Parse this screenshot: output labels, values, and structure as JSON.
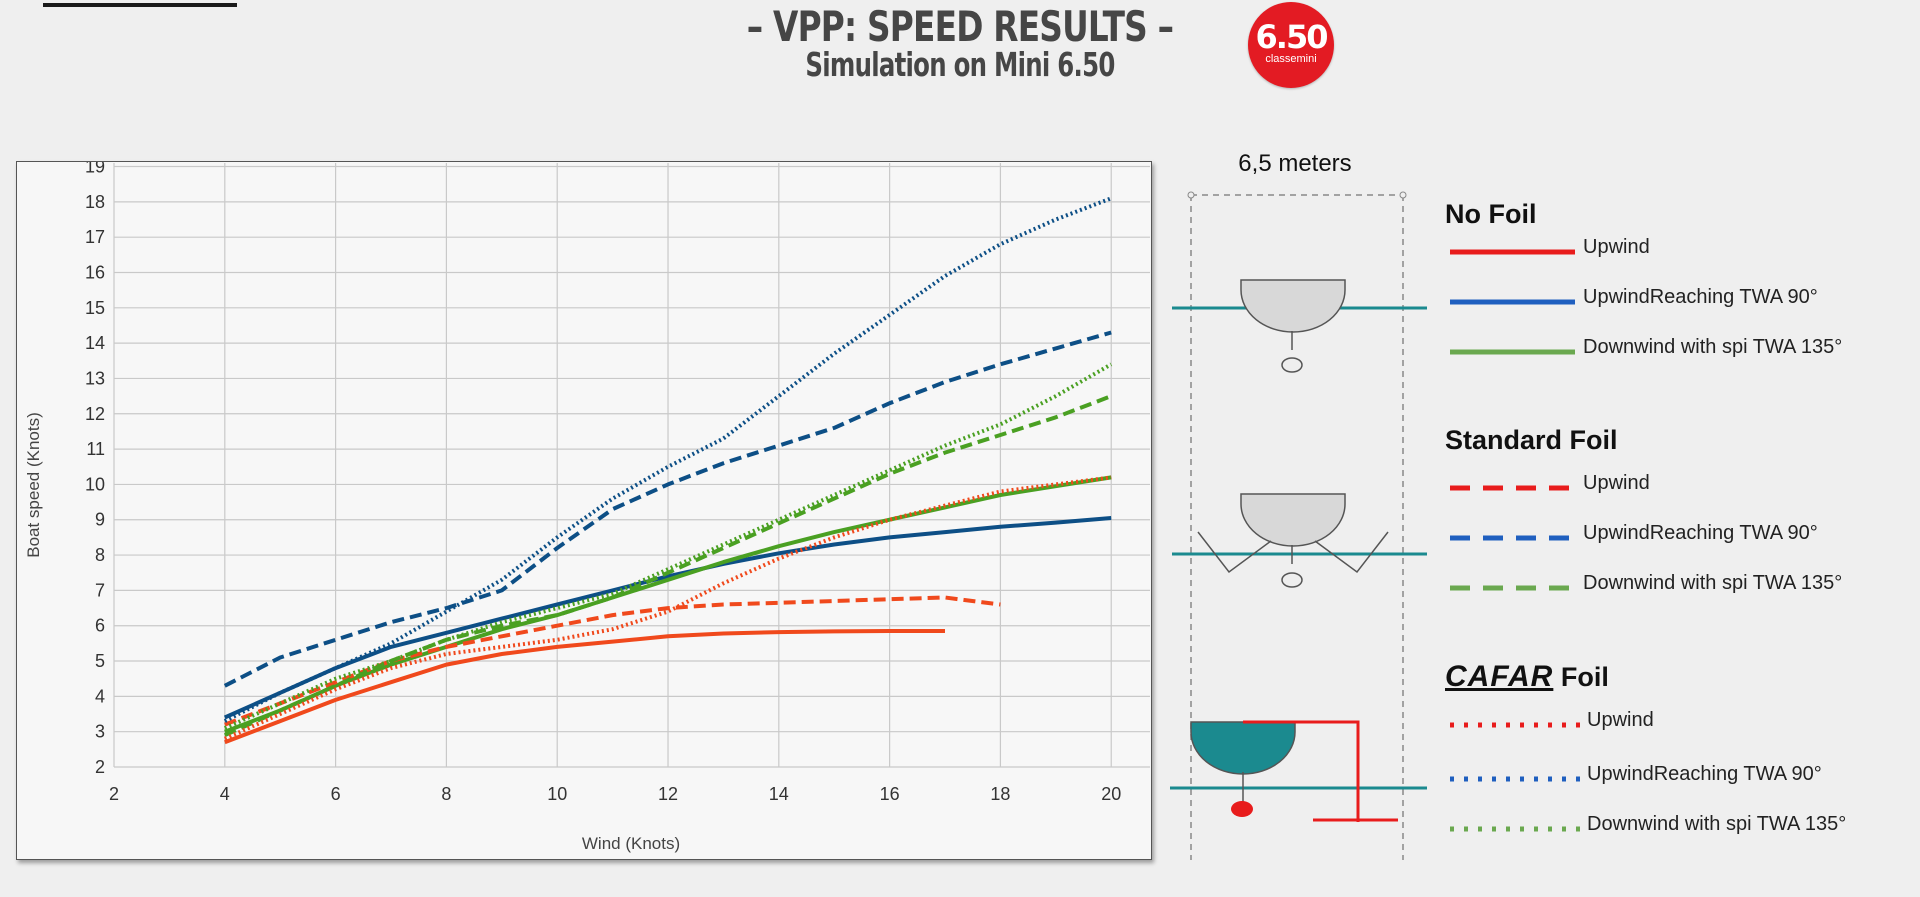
{
  "header": {
    "title": "– VPP: SPEED RESULTS –",
    "subtitle": "Simulation on Mini 6.50",
    "badge_number": "6.50",
    "badge_caption": "classemini"
  },
  "diagram": {
    "width_label": "6,5 meters"
  },
  "legend": {
    "groups": [
      {
        "heading": "No Foil",
        "brand": "",
        "items": [
          {
            "label": "Upwind",
            "color": "#e81c1c",
            "style": "solid"
          },
          {
            "label": "UpwindReaching TWA 90°",
            "color": "#1f5fbf",
            "style": "solid"
          },
          {
            "label": "Downwind with spi TWA 135°",
            "color": "#6aa84f",
            "style": "solid"
          }
        ]
      },
      {
        "heading": "Standard Foil",
        "brand": "",
        "items": [
          {
            "label": "Upwind",
            "color": "#e81c1c",
            "style": "dashed"
          },
          {
            "label": "UpwindReaching TWA 90°",
            "color": "#1f5fbf",
            "style": "dashed"
          },
          {
            "label": "Downwind with spi TWA 135°",
            "color": "#6aa84f",
            "style": "dashed"
          }
        ]
      },
      {
        "heading": "Foil",
        "brand": "CAFAR",
        "items": [
          {
            "label": "Upwind",
            "color": "#e81c1c",
            "style": "dotted"
          },
          {
            "label": "UpwindReaching TWA 90°",
            "color": "#1f5fbf",
            "style": "dotted"
          },
          {
            "label": "Downwind with spi TWA 135°",
            "color": "#6aa84f",
            "style": "dotted"
          }
        ]
      }
    ]
  },
  "chart_data": {
    "type": "line",
    "title": "",
    "xlabel": "Wind (Knots)",
    "ylabel": "Boat speed (Knots)",
    "xlim": [
      2,
      20.7
    ],
    "ylim": [
      2,
      19.1
    ],
    "x_ticks": [
      2,
      4,
      6,
      8,
      10,
      12,
      14,
      16,
      18,
      20
    ],
    "y_ticks": [
      2,
      3,
      4,
      5,
      6,
      7,
      8,
      9,
      10,
      11,
      12,
      13,
      14,
      15,
      16,
      17,
      18,
      19
    ],
    "grid": true,
    "legend": "none",
    "series": [
      {
        "color": "#f0491c",
        "style": "solid",
        "points": [
          [
            4,
            2.7
          ],
          [
            5,
            3.3
          ],
          [
            6,
            3.9
          ],
          [
            7,
            4.4
          ],
          [
            8,
            4.9
          ],
          [
            9,
            5.2
          ],
          [
            10,
            5.4
          ],
          [
            11,
            5.55
          ],
          [
            12,
            5.7
          ],
          [
            13,
            5.78
          ],
          [
            14,
            5.82
          ],
          [
            15,
            5.84
          ],
          [
            16,
            5.85
          ],
          [
            17,
            5.85
          ]
        ]
      },
      {
        "color": "#0d4f86",
        "style": "solid",
        "points": [
          [
            4,
            3.4
          ],
          [
            5,
            4.1
          ],
          [
            6,
            4.8
          ],
          [
            7,
            5.4
          ],
          [
            8,
            5.8
          ],
          [
            9,
            6.2
          ],
          [
            10,
            6.6
          ],
          [
            11,
            7.0
          ],
          [
            12,
            7.4
          ],
          [
            13,
            7.75
          ],
          [
            14,
            8.05
          ],
          [
            15,
            8.3
          ],
          [
            16,
            8.5
          ],
          [
            17,
            8.65
          ],
          [
            18,
            8.8
          ],
          [
            19,
            8.92
          ],
          [
            20,
            9.05
          ]
        ]
      },
      {
        "color": "#4aa022",
        "style": "solid",
        "points": [
          [
            4,
            3.0
          ],
          [
            5,
            3.6
          ],
          [
            6,
            4.3
          ],
          [
            7,
            4.9
          ],
          [
            8,
            5.4
          ],
          [
            9,
            5.9
          ],
          [
            10,
            6.3
          ],
          [
            11,
            6.8
          ],
          [
            12,
            7.3
          ],
          [
            13,
            7.8
          ],
          [
            14,
            8.25
          ],
          [
            15,
            8.65
          ],
          [
            16,
            9.0
          ],
          [
            17,
            9.35
          ],
          [
            18,
            9.7
          ],
          [
            19,
            9.95
          ],
          [
            20,
            10.2
          ]
        ]
      },
      {
        "color": "#f0491c",
        "style": "dashed",
        "points": [
          [
            4,
            3.2
          ],
          [
            5,
            3.8
          ],
          [
            6,
            4.4
          ],
          [
            7,
            5.0
          ],
          [
            8,
            5.4
          ],
          [
            9,
            5.7
          ],
          [
            10,
            6.0
          ],
          [
            11,
            6.3
          ],
          [
            12,
            6.5
          ],
          [
            13,
            6.6
          ],
          [
            14,
            6.65
          ],
          [
            15,
            6.7
          ],
          [
            16,
            6.75
          ],
          [
            17,
            6.8
          ],
          [
            18,
            6.6
          ]
        ]
      },
      {
        "color": "#0d4f86",
        "style": "dashed",
        "points": [
          [
            4,
            4.3
          ],
          [
            5,
            5.1
          ],
          [
            6,
            5.6
          ],
          [
            7,
            6.1
          ],
          [
            8,
            6.5
          ],
          [
            9,
            7.0
          ],
          [
            10,
            8.2
          ],
          [
            11,
            9.3
          ],
          [
            12,
            10.0
          ],
          [
            13,
            10.6
          ],
          [
            14,
            11.1
          ],
          [
            15,
            11.6
          ],
          [
            16,
            12.3
          ],
          [
            17,
            12.9
          ],
          [
            18,
            13.4
          ],
          [
            19,
            13.85
          ],
          [
            20,
            14.3
          ]
        ]
      },
      {
        "color": "#4aa022",
        "style": "dashed",
        "points": [
          [
            4,
            2.9
          ],
          [
            5,
            3.6
          ],
          [
            6,
            4.3
          ],
          [
            7,
            5.0
          ],
          [
            8,
            5.6
          ],
          [
            9,
            6.0
          ],
          [
            10,
            6.3
          ],
          [
            11,
            6.8
          ],
          [
            12,
            7.5
          ],
          [
            13,
            8.2
          ],
          [
            14,
            8.9
          ],
          [
            15,
            9.6
          ],
          [
            16,
            10.3
          ],
          [
            17,
            10.9
          ],
          [
            18,
            11.4
          ],
          [
            19,
            11.9
          ],
          [
            20,
            12.5
          ]
        ]
      },
      {
        "color": "#f0491c",
        "style": "dotted",
        "points": [
          [
            4,
            2.8
          ],
          [
            5,
            3.5
          ],
          [
            6,
            4.2
          ],
          [
            7,
            4.8
          ],
          [
            8,
            5.2
          ],
          [
            9,
            5.4
          ],
          [
            10,
            5.6
          ],
          [
            11,
            5.9
          ],
          [
            12,
            6.4
          ],
          [
            13,
            7.2
          ],
          [
            14,
            7.9
          ],
          [
            15,
            8.5
          ],
          [
            16,
            9.0
          ],
          [
            17,
            9.4
          ],
          [
            18,
            9.8
          ],
          [
            19,
            10.0
          ],
          [
            20,
            10.2
          ]
        ]
      },
      {
        "color": "#0d4f86",
        "style": "dotted",
        "points": [
          [
            4,
            3.3
          ],
          [
            5,
            4.1
          ],
          [
            6,
            4.8
          ],
          [
            7,
            5.5
          ],
          [
            8,
            6.4
          ],
          [
            9,
            7.3
          ],
          [
            10,
            8.5
          ],
          [
            11,
            9.6
          ],
          [
            12,
            10.5
          ],
          [
            13,
            11.3
          ],
          [
            14,
            12.5
          ],
          [
            15,
            13.7
          ],
          [
            16,
            14.8
          ],
          [
            17,
            15.9
          ],
          [
            18,
            16.8
          ],
          [
            19,
            17.5
          ],
          [
            20,
            18.1
          ]
        ]
      },
      {
        "color": "#4aa022",
        "style": "dotted",
        "points": [
          [
            4,
            3.1
          ],
          [
            5,
            3.8
          ],
          [
            6,
            4.5
          ],
          [
            7,
            5.0
          ],
          [
            8,
            5.6
          ],
          [
            9,
            6.1
          ],
          [
            10,
            6.5
          ],
          [
            11,
            6.9
          ],
          [
            12,
            7.6
          ],
          [
            13,
            8.3
          ],
          [
            14,
            9.0
          ],
          [
            15,
            9.7
          ],
          [
            16,
            10.4
          ],
          [
            17,
            11.1
          ],
          [
            18,
            11.7
          ],
          [
            19,
            12.5
          ],
          [
            20,
            13.4
          ]
        ]
      }
    ]
  }
}
